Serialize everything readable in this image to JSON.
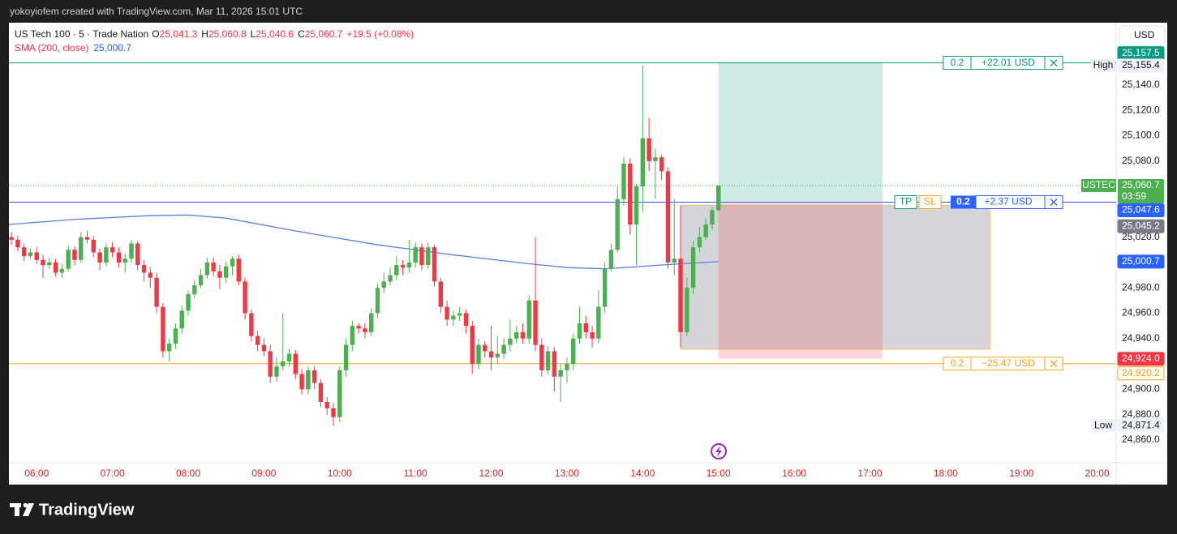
{
  "watermark": "yokoyiofem created with TradingView.com, Mar 11, 2026 15:01 UTC",
  "brand": "TradingView",
  "currency": "USD",
  "chart_data": {
    "type": "candlestick",
    "title": "US Tech 100 · 5 · Trade Nation",
    "ohlc_legend": [
      {
        "key": "O",
        "value": "25,041.3"
      },
      {
        "key": "H",
        "value": "25,060.8"
      },
      {
        "key": "L",
        "value": "25,040.6"
      },
      {
        "key": "C",
        "value": "25,060.7"
      }
    ],
    "change": "+19.5 (+0.08%)",
    "x": [
      "05:40",
      "05:45",
      "05:50",
      "05:55",
      "06:00",
      "06:05",
      "06:10",
      "06:15",
      "06:20",
      "06:25",
      "06:30",
      "06:35",
      "06:40",
      "06:45",
      "06:50",
      "06:55",
      "07:00",
      "07:05",
      "07:10",
      "07:15",
      "07:20",
      "07:25",
      "07:30",
      "07:35",
      "07:40",
      "07:45",
      "07:50",
      "07:55",
      "08:00",
      "08:05",
      "08:10",
      "08:15",
      "08:20",
      "08:25",
      "08:30",
      "08:35",
      "08:40",
      "08:45",
      "08:50",
      "08:55",
      "09:00",
      "09:05",
      "09:10",
      "09:15",
      "09:20",
      "09:25",
      "09:30",
      "09:35",
      "09:40",
      "09:45",
      "09:50",
      "09:55",
      "10:00",
      "10:05",
      "10:10",
      "10:15",
      "10:20",
      "10:25",
      "10:30",
      "10:35",
      "10:40",
      "10:45",
      "10:50",
      "10:55",
      "11:00",
      "11:05",
      "11:10",
      "11:15",
      "11:20",
      "11:25",
      "11:30",
      "11:35",
      "11:40",
      "11:45",
      "11:50",
      "11:55",
      "12:00",
      "12:05",
      "12:10",
      "12:15",
      "12:20",
      "12:25",
      "12:30",
      "12:35",
      "12:40",
      "12:45",
      "12:50",
      "12:55",
      "13:00",
      "13:05",
      "13:10",
      "13:15",
      "13:20",
      "13:25",
      "13:30",
      "13:35",
      "13:40",
      "13:45",
      "13:50",
      "13:55",
      "14:00",
      "14:05",
      "14:10",
      "14:15",
      "14:20",
      "14:25",
      "14:30",
      "14:35",
      "14:40",
      "14:45",
      "14:50",
      "14:55",
      "15:00"
    ],
    "open": [
      25020,
      25018,
      25012,
      25005,
      25008,
      25002,
      24998,
      25000,
      24992,
      24995,
      25010,
      25002,
      25020,
      25018,
      25008,
      25000,
      25012,
      25008,
      25000,
      25003,
      25015,
      24998,
      24992,
      24988,
      24965,
      24930,
      24936,
      24948,
      24962,
      24975,
      24982,
      24990,
      25000,
      24993,
      24988,
      24997,
      25003,
      24985,
      24960,
      24942,
      24935,
      24930,
      24910,
      24918,
      24922,
      24928,
      24912,
      24900,
      24915,
      24905,
      24890,
      24885,
      24878,
      24915,
      24935,
      24950,
      24948,
      24945,
      24960,
      24980,
      24985,
      24990,
      24998,
      24996,
      25000,
      25012,
      24998,
      25012,
      24985,
      24965,
      24955,
      24958,
      24960,
      24950,
      24920,
      24935,
      24930,
      24925,
      24928,
      24935,
      24940,
      24945,
      24940,
      24970,
      24935,
      24915,
      24930,
      24910,
      24915,
      24920,
      24940,
      24952,
      24945,
      24940,
      24965,
      24995,
      25010,
      25050,
      25078,
      25030,
      25060,
      25098,
      25080,
      25083,
      25072,
      25000,
      25003,
      24945,
      24980,
      25012,
      25020,
      25030,
      25041.3
    ],
    "high": [
      25024,
      25021,
      25015,
      25011,
      25012,
      25006,
      25004,
      25003,
      24999,
      25013,
      25013,
      25024,
      25025,
      25021,
      25011,
      25015,
      25016,
      25012,
      25007,
      25018,
      25017,
      25002,
      24996,
      24992,
      24968,
      24940,
      24952,
      24966,
      24978,
      24986,
      24995,
      25004,
      25004,
      24998,
      25001,
      25005,
      25006,
      24988,
      24963,
      24946,
      24940,
      24935,
      24925,
      24960,
      24932,
      24931,
      24916,
      24918,
      24918,
      24908,
      24894,
      24889,
      24918,
      24940,
      24954,
      24952,
      24952,
      24964,
      24983,
      24992,
      24996,
      25005,
      25002,
      25018,
      25016,
      25015,
      25016,
      25014,
      24988,
      24970,
      24962,
      24965,
      24963,
      24954,
      24940,
      24938,
      24950,
      24942,
      24940,
      24955,
      24950,
      24952,
      24974,
      25020,
      24940,
      24934,
      24933,
      24920,
      24925,
      24944,
      24965,
      24958,
      24950,
      24978,
      25000,
      25015,
      25060,
      25083,
      25082,
      25062,
      25155.4,
      25114,
      25090,
      25085,
      25075,
      25050,
      25045,
      24988,
      25017,
      25028,
      25035,
      25044,
      25060.8
    ],
    "low": [
      25014,
      25009,
      25001,
      25003,
      24999,
      24988,
      24995,
      24989,
      24988,
      24993,
      24998,
      25000,
      25015,
      25004,
      24994,
      24997,
      25004,
      24996,
      24992,
      25000,
      24994,
      24985,
      24980,
      24960,
      24925,
      24922,
      24932,
      24944,
      24958,
      24972,
      24980,
      24987,
      24989,
      24979,
      24984,
      24990,
      24982,
      24955,
      24938,
      24930,
      24926,
      24905,
      24906,
      24915,
      24918,
      24908,
      24896,
      24896,
      24900,
      24886,
      24880,
      24871.4,
      24874,
      24910,
      24930,
      24944,
      24940,
      24942,
      24956,
      24976,
      24982,
      24986,
      24990,
      24992,
      24996,
      24994,
      24995,
      24981,
      24960,
      24950,
      24950,
      24954,
      24944,
      24912,
      24916,
      24925,
      24915,
      24920,
      24924,
      24930,
      24936,
      24936,
      24936,
      24930,
      24910,
      24912,
      24898,
      24890,
      24905,
      24915,
      24936,
      24940,
      24933,
      24936,
      24960,
      24993,
      25008,
      25045,
      25022,
      24998,
      25040,
      25072,
      25050,
      25065,
      24995,
      24990,
      24933,
      24942,
      24975,
      25008,
      25018,
      25026,
      25040.6
    ],
    "close": [
      25018,
      25012,
      25005,
      25008,
      25002,
      24998,
      25000,
      24992,
      24995,
      25010,
      25002,
      25020,
      25018,
      25008,
      25000,
      25012,
      25008,
      25000,
      25003,
      25015,
      24998,
      24992,
      24988,
      24965,
      24930,
      24936,
      24948,
      24962,
      24975,
      24982,
      24990,
      25000,
      24993,
      24988,
      24997,
      25003,
      24985,
      24960,
      24942,
      24935,
      24930,
      24910,
      24918,
      24922,
      24928,
      24912,
      24900,
      24915,
      24905,
      24890,
      24885,
      24878,
      24915,
      24935,
      24950,
      24948,
      24945,
      24960,
      24980,
      24985,
      24990,
      24998,
      24996,
      25000,
      25012,
      24998,
      25012,
      24985,
      24965,
      24955,
      24958,
      24960,
      24950,
      24920,
      24935,
      24930,
      24925,
      24928,
      24935,
      24940,
      24945,
      24940,
      24970,
      24935,
      24915,
      24930,
      24910,
      24915,
      24920,
      24940,
      24952,
      24945,
      24940,
      24965,
      24995,
      25010,
      25050,
      25078,
      25030,
      25060,
      25098,
      25080,
      25083,
      25072,
      25000,
      25003,
      24945,
      24980,
      25012,
      25020,
      25030,
      25041.3,
      25060.7
    ],
    "up_color": "#4caf50",
    "down_color": "#f23645",
    "xlim": [
      "05:38",
      "20:15"
    ],
    "xticks": [
      "06:00",
      "07:00",
      "08:00",
      "09:00",
      "10:00",
      "11:00",
      "12:00",
      "13:00",
      "14:00",
      "15:00",
      "16:00",
      "17:00",
      "18:00",
      "19:00",
      "20:00"
    ],
    "ylim": [
      24842.7,
      25189.2
    ],
    "yticks": [
      {
        "value": 25140,
        "label": "25,140.0"
      },
      {
        "value": 25120,
        "label": "25,120.0"
      },
      {
        "value": 25100,
        "label": "25,100.0"
      },
      {
        "value": 25080,
        "label": "25,080.0"
      },
      {
        "value": 25020,
        "label": "25,020.0"
      },
      {
        "value": 24980,
        "label": "24,980.0"
      },
      {
        "value": 24960,
        "label": "24,960.0"
      },
      {
        "value": 24940,
        "label": "24,940.0"
      },
      {
        "value": 24900,
        "label": "24,900.0"
      },
      {
        "value": 24880,
        "label": "24,880.0"
      },
      {
        "value": 24860,
        "label": "24,860.0"
      }
    ],
    "grid": false,
    "sma": {
      "name": "SMA (200, close)",
      "color": "#5b7fe0",
      "last": {
        "value": 25000.7,
        "label": "25,000.7"
      },
      "x": [
        "05:38",
        "06:30",
        "07:30",
        "08:00",
        "08:30",
        "09:30",
        "10:30",
        "11:30",
        "12:30",
        "13:00",
        "13:30",
        "14:00",
        "14:30",
        "15:00"
      ],
      "values": [
        25030,
        25034,
        25037,
        25037.5,
        25035,
        25024,
        25014,
        25006,
        24999,
        24996,
        24995,
        24997,
        24999,
        25000.7
      ]
    },
    "last_price": {
      "symbol": "USTEC",
      "value": 25060.7,
      "label": "25,060.7",
      "countdown": "03:59"
    },
    "high_marker": {
      "name": "High",
      "value": 25155.4,
      "label": "25,155.4"
    },
    "low_marker": {
      "name": "Low",
      "value": 24871.4,
      "label": "24,871.4"
    },
    "position": {
      "start": "15:00",
      "end": "17:10",
      "entry": {
        "value": 25047.6,
        "label": "25,047.6"
      },
      "take_profit": {
        "value": 25157.5,
        "label": "25,157.5"
      },
      "stop_loss": {
        "value": 24924.0,
        "label": "24,924.0"
      }
    },
    "range_box": {
      "start": "14:30",
      "end": "18:35",
      "top": {
        "value": 25045.2,
        "label": "25,045.2"
      },
      "bottom": 24931.6
    },
    "order_lines": [
      {
        "qty": "0.2",
        "pnl": "+22.01 USD",
        "value": 25157.5,
        "color": "#089981"
      },
      {
        "qty": "0.2",
        "pnl": "+2.37 USD",
        "value": 25047.6,
        "color": "#2962ff",
        "buttons": [
          "TP",
          "SL"
        ]
      },
      {
        "qty": "0.2",
        "pnl": "−25.47 USD",
        "value": 24920.2,
        "label": "24,920.2",
        "color": "#f7a21b"
      }
    ]
  }
}
